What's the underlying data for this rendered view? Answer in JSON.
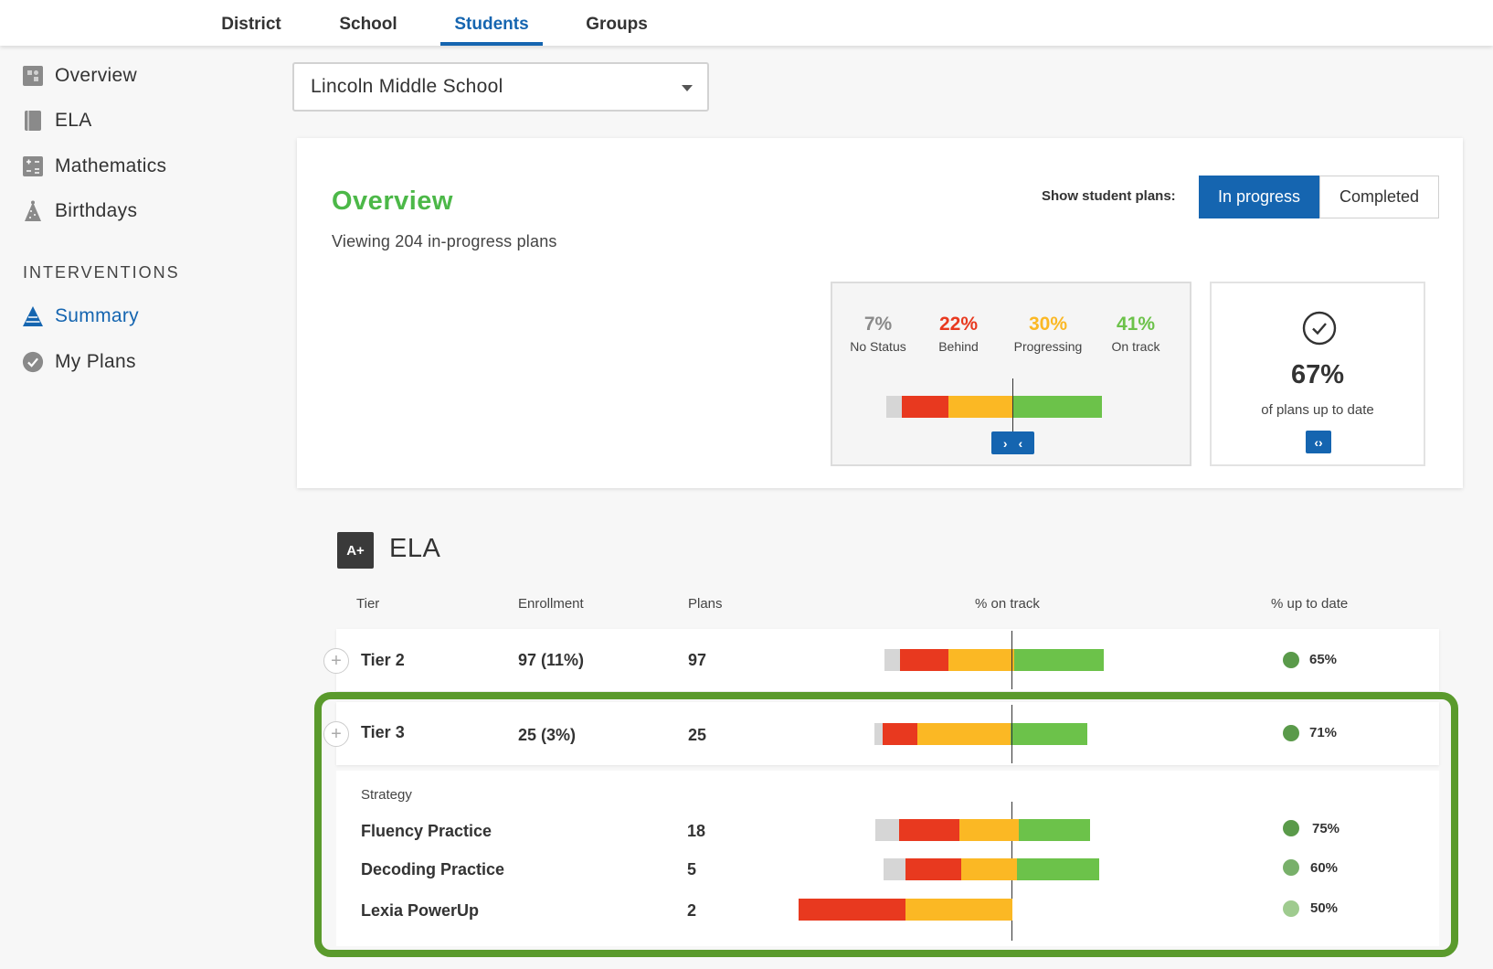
{
  "colors": {
    "no_status": "#d6d6d6",
    "behind": "#e8391f",
    "progressing": "#fbb824",
    "on_track": "#6cc24a",
    "accent": "#1565b0",
    "highlight": "#5a9a2c"
  },
  "top_tabs": [
    {
      "label": "District",
      "active": false
    },
    {
      "label": "School",
      "active": false
    },
    {
      "label": "Students",
      "active": true
    },
    {
      "label": "Groups",
      "active": false
    }
  ],
  "sidebar": {
    "items": [
      {
        "label": "Overview",
        "icon": "puzzle-icon"
      },
      {
        "label": "ELA",
        "icon": "book-icon"
      },
      {
        "label": "Mathematics",
        "icon": "calculator-icon"
      },
      {
        "label": "Birthdays",
        "icon": "party-hat-icon"
      }
    ],
    "section_label": "INTERVENTIONS",
    "intervention_items": [
      {
        "label": "Summary",
        "icon": "pyramid-icon",
        "active": true
      },
      {
        "label": "My Plans",
        "icon": "check-circle-icon",
        "active": false
      }
    ]
  },
  "school_select": {
    "value": "Lincoln Middle School"
  },
  "overview": {
    "title": "Overview",
    "subtitle": "Viewing 204 in-progress plans",
    "plans_toggle_label": "Show student plans:",
    "plans_toggle_options": [
      "In progress",
      "Completed"
    ],
    "plans_toggle_selected": "In progress",
    "stats": [
      {
        "pct": "7%",
        "label": "No Status"
      },
      {
        "pct": "22%",
        "label": "Behind"
      },
      {
        "pct": "30%",
        "label": "Progressing"
      },
      {
        "pct": "41%",
        "label": "On track"
      }
    ],
    "stats_values": {
      "no_status": 7,
      "behind": 22,
      "progressing": 30,
      "on_track": 41
    },
    "up_to_date_pct": "67%",
    "up_to_date_label": "of plans up to date"
  },
  "ela": {
    "badge": "A+",
    "title": "ELA",
    "columns": [
      "Tier",
      "Enrollment",
      "Plans",
      "% on track",
      "% up to date"
    ],
    "tiers": [
      {
        "tier": "Tier 2",
        "enrollment": "97 (11%)",
        "plans": "97",
        "up_to_date": "65%",
        "dist": {
          "no_status": 7,
          "behind": 22,
          "progressing": 30,
          "on_track": 41
        }
      },
      {
        "tier": "Tier 3",
        "enrollment": "25 (3%)",
        "plans": "25",
        "up_to_date": "71%",
        "dist": {
          "no_status": 4,
          "behind": 16,
          "progressing": 44,
          "on_track": 36
        }
      }
    ],
    "strategy_header": "Strategy",
    "strategies": [
      {
        "name": "Fluency Practice",
        "plans": "18",
        "up_to_date": "75%",
        "dist": {
          "no_status": 11,
          "behind": 28,
          "progressing": 28,
          "on_track": 33
        }
      },
      {
        "name": "Decoding Practice",
        "plans": "5",
        "up_to_date": "60%",
        "dist": {
          "no_status": 10,
          "behind": 26,
          "progressing": 26,
          "on_track": 38
        }
      },
      {
        "name": "Lexia PowerUp",
        "plans": "2",
        "up_to_date": "50%",
        "dist": {
          "no_status": 0,
          "behind": 50,
          "progressing": 50,
          "on_track": 0
        }
      }
    ]
  }
}
